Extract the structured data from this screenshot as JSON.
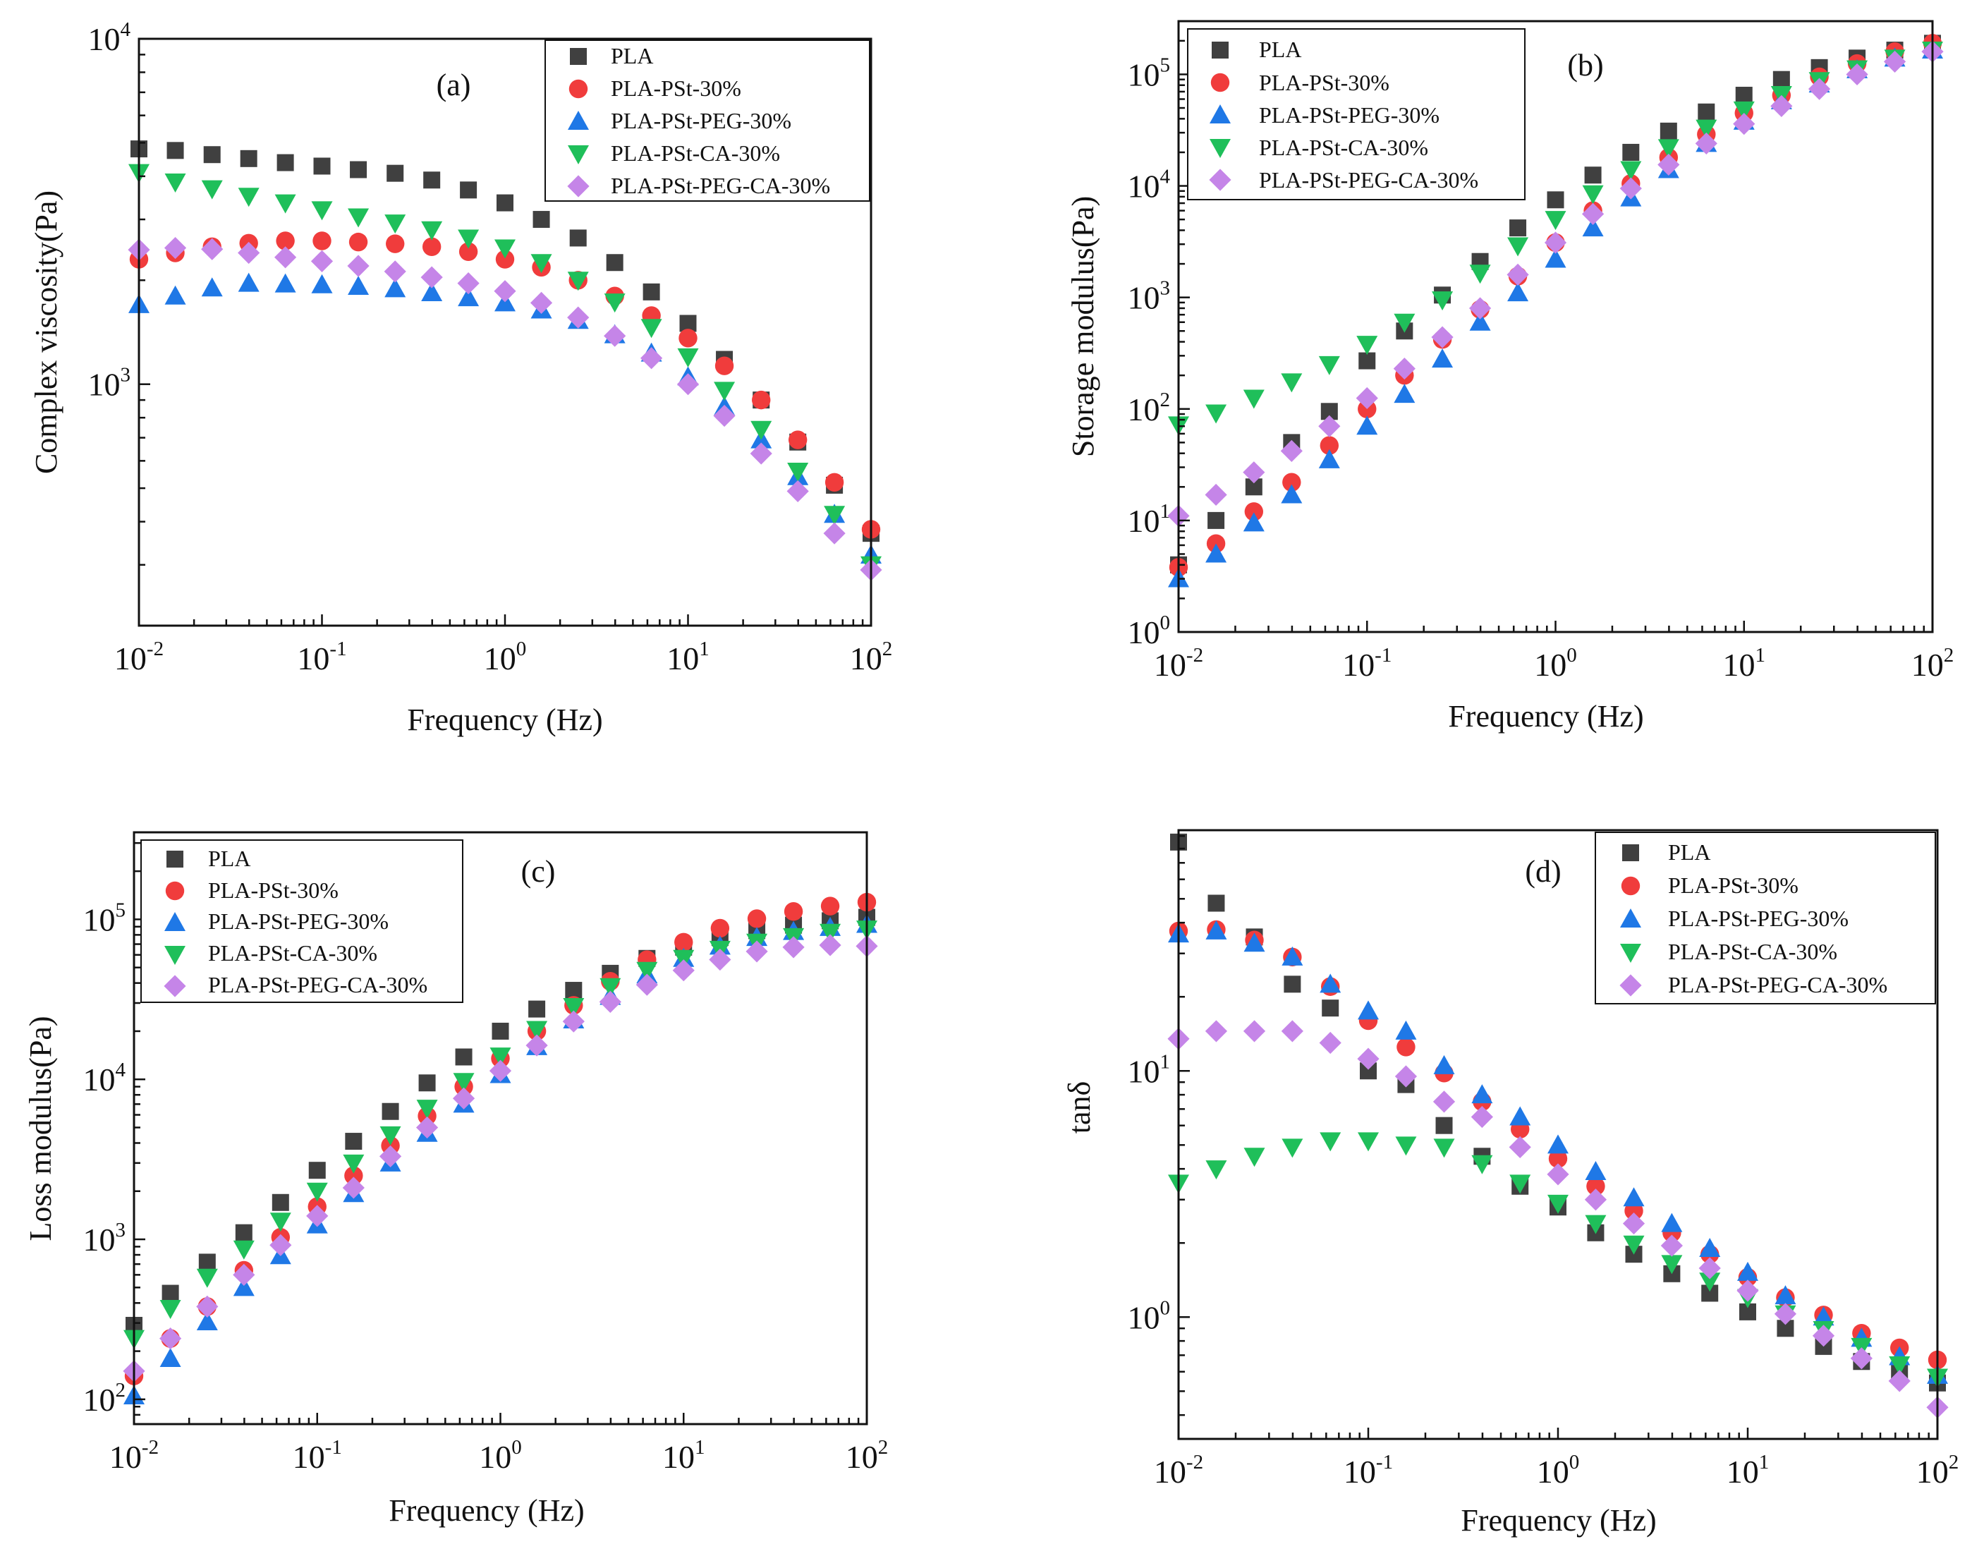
{
  "figure": {
    "series_style": [
      {
        "name": "PLA",
        "color": "#404040",
        "marker": "square"
      },
      {
        "name": "PLA-PSt-30%",
        "color": "#f03c3c",
        "marker": "circle"
      },
      {
        "name": "PLA-PSt-PEG-30%",
        "color": "#1f78e6",
        "marker": "triangle-up"
      },
      {
        "name": "PLA-PSt-CA-30%",
        "color": "#1fbf5a",
        "marker": "triangle-down"
      },
      {
        "name": "PLA-PSt-PEG-CA-30%",
        "color": "#c585e8",
        "marker": "diamond"
      }
    ]
  },
  "chart_data": [
    {
      "id": "a",
      "type": "scatter",
      "panel_label": "(a)",
      "xlabel": "Frequency (Hz)",
      "ylabel": "Complex viscosity(Pa)",
      "xscale": "log",
      "yscale": "log",
      "xlim": [
        0.01,
        100
      ],
      "ylim": [
        200,
        10000
      ],
      "xticks": [
        {
          "base": "10",
          "exp": "-2",
          "v": 0.01
        },
        {
          "base": "10",
          "exp": "-1",
          "v": 0.1
        },
        {
          "base": "10",
          "exp": "0",
          "v": 1
        },
        {
          "base": "10",
          "exp": "1",
          "v": 10
        },
        {
          "base": "10",
          "exp": "2",
          "v": 100
        }
      ],
      "yticks": [
        {
          "base": "10",
          "exp": "3",
          "v": 1000
        },
        {
          "base": "10",
          "exp": "4",
          "v": 10000
        }
      ],
      "legend_position": "top-right",
      "x": [
        0.01,
        0.0158,
        0.0251,
        0.0398,
        0.0631,
        0.1,
        0.158,
        0.251,
        0.398,
        0.631,
        1,
        1.58,
        2.51,
        3.98,
        6.31,
        10,
        15.8,
        25.1,
        39.8,
        63.1,
        100
      ],
      "series": [
        {
          "name": "PLA",
          "values": [
            4800,
            4750,
            4620,
            4500,
            4380,
            4280,
            4180,
            4080,
            3900,
            3650,
            3350,
            3000,
            2650,
            2250,
            1850,
            1500,
            1180,
            900,
            680,
            510,
            370
          ]
        },
        {
          "name": "PLA-PSt-30%",
          "values": [
            2300,
            2400,
            2500,
            2560,
            2600,
            2600,
            2580,
            2550,
            2500,
            2420,
            2300,
            2180,
            2000,
            1800,
            1580,
            1360,
            1130,
            900,
            690,
            520,
            380
          ]
        },
        {
          "name": "PLA-PSt-PEG-30%",
          "values": [
            1700,
            1800,
            1900,
            1960,
            1950,
            1940,
            1920,
            1890,
            1840,
            1780,
            1720,
            1640,
            1530,
            1390,
            1230,
            1050,
            860,
            690,
            540,
            420,
            320
          ]
        },
        {
          "name": "PLA-PSt-CA-30%",
          "values": [
            4100,
            3850,
            3680,
            3500,
            3350,
            3200,
            3050,
            2930,
            2800,
            2650,
            2480,
            2250,
            2000,
            1730,
            1460,
            1200,
            960,
            740,
            560,
            420,
            300
          ]
        },
        {
          "name": "PLA-PSt-PEG-CA-30%",
          "values": [
            2450,
            2480,
            2460,
            2400,
            2330,
            2270,
            2200,
            2120,
            2040,
            1960,
            1860,
            1720,
            1560,
            1380,
            1190,
            1000,
            810,
            630,
            490,
            370,
            290
          ]
        }
      ]
    },
    {
      "id": "b",
      "type": "scatter",
      "panel_label": "(b)",
      "xlabel": "Frequency (Hz)",
      "ylabel": "Storage modulus(Pa)",
      "xscale": "log",
      "yscale": "log",
      "xlim": [
        0.01,
        100
      ],
      "ylim": [
        1,
        300000
      ],
      "xticks": [
        {
          "base": "10",
          "exp": "-2",
          "v": 0.01
        },
        {
          "base": "10",
          "exp": "-1",
          "v": 0.1
        },
        {
          "base": "10",
          "exp": "0",
          "v": 1
        },
        {
          "base": "10",
          "exp": "1",
          "v": 10
        },
        {
          "base": "10",
          "exp": "2",
          "v": 100
        }
      ],
      "yticks": [
        {
          "base": "10",
          "exp": "0",
          "v": 1
        },
        {
          "base": "10",
          "exp": "1",
          "v": 10
        },
        {
          "base": "10",
          "exp": "2",
          "v": 100
        },
        {
          "base": "10",
          "exp": "3",
          "v": 1000
        },
        {
          "base": "10",
          "exp": "4",
          "v": 10000
        },
        {
          "base": "10",
          "exp": "5",
          "v": 100000
        }
      ],
      "legend_position": "top-left",
      "x": [
        0.01,
        0.0158,
        0.0251,
        0.0398,
        0.0631,
        0.1,
        0.158,
        0.251,
        0.398,
        0.631,
        1,
        1.58,
        2.51,
        3.98,
        6.31,
        10,
        15.8,
        25.1,
        39.8,
        63.1,
        100
      ],
      "series": [
        {
          "name": "PLA",
          "values": [
            4,
            10,
            20,
            50,
            95,
            270,
            500,
            1050,
            2100,
            4200,
            7500,
            12500,
            20000,
            31000,
            46000,
            65000,
            90000,
            115000,
            140000,
            165000,
            190000
          ]
        },
        {
          "name": "PLA-PSt-30%",
          "values": [
            3.8,
            6.2,
            12,
            22,
            47,
            100,
            200,
            420,
            780,
            1550,
            3100,
            6000,
            10500,
            18000,
            29000,
            45000,
            65000,
            95000,
            125000,
            160000,
            190000
          ]
        },
        {
          "name": "PLA-PSt-PEG-30%",
          "values": [
            3,
            5,
            9.5,
            17,
            35,
            70,
            135,
            280,
            600,
            1100,
            2200,
            4200,
            7800,
            14000,
            24000,
            38000,
            58000,
            82000,
            110000,
            140000,
            165000
          ]
        },
        {
          "name": "PLA-PSt-CA-30%",
          "values": [
            72,
            92,
            125,
            175,
            250,
            380,
            600,
            950,
            1650,
            2900,
            5000,
            8500,
            14000,
            22000,
            33000,
            48000,
            66000,
            88000,
            112000,
            140000,
            165000
          ]
        },
        {
          "name": "PLA-PSt-PEG-CA-30%",
          "values": [
            11,
            17,
            27,
            42,
            70,
            125,
            230,
            440,
            800,
            1600,
            3100,
            5600,
            9500,
            15500,
            24000,
            36000,
            52000,
            74000,
            100000,
            130000,
            160000
          ]
        }
      ]
    },
    {
      "id": "c",
      "type": "scatter",
      "panel_label": "(c)",
      "xlabel": "Frequency (Hz)",
      "ylabel": "Loss modulus(Pa)",
      "xscale": "log",
      "yscale": "log",
      "xlim": [
        0.01,
        100
      ],
      "ylim": [
        70,
        350000
      ],
      "xticks": [
        {
          "base": "10",
          "exp": "-2",
          "v": 0.01
        },
        {
          "base": "10",
          "exp": "-1",
          "v": 0.1
        },
        {
          "base": "10",
          "exp": "0",
          "v": 1
        },
        {
          "base": "10",
          "exp": "1",
          "v": 10
        },
        {
          "base": "10",
          "exp": "2",
          "v": 100
        }
      ],
      "yticks": [
        {
          "base": "10",
          "exp": "2",
          "v": 100
        },
        {
          "base": "10",
          "exp": "3",
          "v": 1000
        },
        {
          "base": "10",
          "exp": "4",
          "v": 10000
        },
        {
          "base": "10",
          "exp": "5",
          "v": 100000
        }
      ],
      "legend_position": "top-left",
      "x": [
        0.01,
        0.0158,
        0.0251,
        0.0398,
        0.0631,
        0.1,
        0.158,
        0.251,
        0.398,
        0.631,
        1,
        1.58,
        2.51,
        3.98,
        6.31,
        10,
        15.8,
        25.1,
        39.8,
        63.1,
        100
      ],
      "series": [
        {
          "name": "PLA",
          "values": [
            290,
            460,
            720,
            1100,
            1700,
            2700,
            4100,
            6300,
            9500,
            13800,
            20000,
            27500,
            36000,
            46000,
            57000,
            67000,
            77000,
            85000,
            92000,
            98000,
            103000
          ]
        },
        {
          "name": "PLA-PSt-30%",
          "values": [
            140,
            240,
            380,
            640,
            1030,
            1600,
            2500,
            3850,
            5900,
            9000,
            13500,
            20000,
            29000,
            41000,
            56000,
            72000,
            88000,
            101000,
            112000,
            121000,
            128000
          ]
        },
        {
          "name": "PLA-PSt-PEG-30%",
          "values": [
            105,
            180,
            305,
            500,
            790,
            1230,
            1930,
            3000,
            4600,
            7000,
            10700,
            16000,
            23500,
            33000,
            45000,
            57000,
            68000,
            77000,
            84000,
            89000,
            93000
          ]
        },
        {
          "name": "PLA-PSt-CA-30%",
          "values": [
            240,
            370,
            580,
            870,
            1300,
            2000,
            3000,
            4500,
            6600,
            9700,
            14000,
            20500,
            28500,
            38000,
            48000,
            57000,
            65000,
            72000,
            78000,
            83000,
            87000
          ]
        },
        {
          "name": "PLA-PSt-PEG-CA-30%",
          "values": [
            150,
            240,
            380,
            600,
            920,
            1400,
            2100,
            3300,
            5000,
            7600,
            11300,
            16300,
            23000,
            30500,
            39000,
            48000,
            56000,
            63000,
            67000,
            69000,
            68000
          ]
        }
      ]
    },
    {
      "id": "d",
      "type": "scatter",
      "panel_label": "(d)",
      "xlabel": "Frequency (Hz)",
      "ylabel": "tanδ",
      "xscale": "log",
      "yscale": "log",
      "xlim": [
        0.01,
        100
      ],
      "ylim": [
        0.32,
        95
      ],
      "xticks": [
        {
          "base": "10",
          "exp": "-2",
          "v": 0.01
        },
        {
          "base": "10",
          "exp": "-1",
          "v": 0.1
        },
        {
          "base": "10",
          "exp": "0",
          "v": 1
        },
        {
          "base": "10",
          "exp": "1",
          "v": 10
        },
        {
          "base": "10",
          "exp": "2",
          "v": 100
        }
      ],
      "yticks": [
        {
          "base": "10",
          "exp": "0",
          "v": 1
        },
        {
          "base": "10",
          "exp": "1",
          "v": 10
        }
      ],
      "legend_position": "top-right",
      "x": [
        0.01,
        0.0158,
        0.0251,
        0.0398,
        0.0631,
        0.1,
        0.158,
        0.251,
        0.398,
        0.631,
        1,
        1.58,
        2.51,
        3.98,
        6.31,
        10,
        15.8,
        25.1,
        39.8,
        63.1,
        100
      ],
      "series": [
        {
          "name": "PLA",
          "values": [
            85,
            48,
            35,
            22.5,
            18,
            10,
            8.8,
            6,
            4.5,
            3.4,
            2.8,
            2.2,
            1.8,
            1.5,
            1.25,
            1.05,
            0.9,
            0.76,
            0.66,
            0.59,
            0.54
          ]
        },
        {
          "name": "PLA-PSt-30%",
          "values": [
            37,
            37.5,
            34,
            29,
            22,
            16,
            12.5,
            9.8,
            7.5,
            5.8,
            4.4,
            3.4,
            2.7,
            2.2,
            1.8,
            1.45,
            1.2,
            1.02,
            0.86,
            0.75,
            0.67
          ]
        },
        {
          "name": "PLA-PSt-PEG-30%",
          "values": [
            36,
            37,
            33,
            29,
            22.5,
            17.5,
            14.5,
            10.5,
            8,
            6.5,
            5,
            3.9,
            3.05,
            2.4,
            1.9,
            1.52,
            1.22,
            1.0,
            0.82,
            0.69,
            0.58
          ]
        },
        {
          "name": "PLA-PSt-CA-30%",
          "values": [
            3.5,
            4,
            4.5,
            4.9,
            5.2,
            5.2,
            5,
            4.9,
            4.2,
            3.5,
            2.9,
            2.4,
            1.98,
            1.65,
            1.4,
            1.2,
            1.03,
            0.89,
            0.76,
            0.64,
            0.57
          ]
        },
        {
          "name": "PLA-PSt-PEG-CA-30%",
          "values": [
            13.5,
            14.5,
            14.5,
            14.5,
            13,
            11.2,
            9.5,
            7.5,
            6.5,
            4.9,
            3.8,
            3,
            2.4,
            1.95,
            1.58,
            1.28,
            1.03,
            0.84,
            0.68,
            0.55,
            0.43
          ]
        }
      ]
    }
  ]
}
